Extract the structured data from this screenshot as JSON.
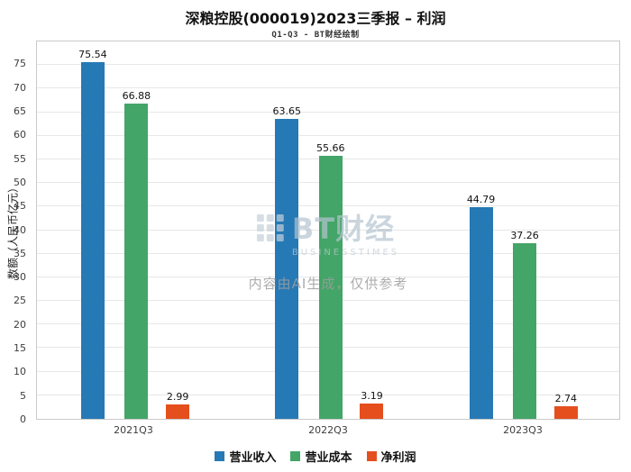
{
  "header": {
    "title": "深粮控股(000019)2023三季报 – 利润",
    "subtitle": "Q1-Q3 - BT财经绘制"
  },
  "chart_data": {
    "type": "bar",
    "title": "深粮控股(000019)2023三季报 – 利润",
    "subtitle": "Q1-Q3 - BT财经绘制",
    "categories": [
      "2021Q3",
      "2022Q3",
      "2023Q3"
    ],
    "series": [
      {
        "name": "营业收入",
        "color": "#2579b5",
        "values": [
          75.54,
          63.65,
          44.79
        ]
      },
      {
        "name": "营业成本",
        "color": "#43a567",
        "values": [
          66.88,
          55.66,
          37.26
        ]
      },
      {
        "name": "净利润",
        "color": "#e54f1d",
        "values": [
          2.99,
          3.19,
          2.74
        ]
      }
    ],
    "xlabel": "",
    "ylabel": "数额（人民币亿元）",
    "ylim": [
      0,
      80
    ],
    "yticks": [
      0,
      5,
      10,
      15,
      20,
      25,
      30,
      35,
      40,
      45,
      50,
      55,
      60,
      65,
      70,
      75
    ],
    "grid": true,
    "legend_position": "bottom"
  },
  "watermark": {
    "logo_text": "BT财经",
    "logo_subtext": "BUSINESSTIMES",
    "disclaimer": "内容由AI生成，仅供参考"
  }
}
